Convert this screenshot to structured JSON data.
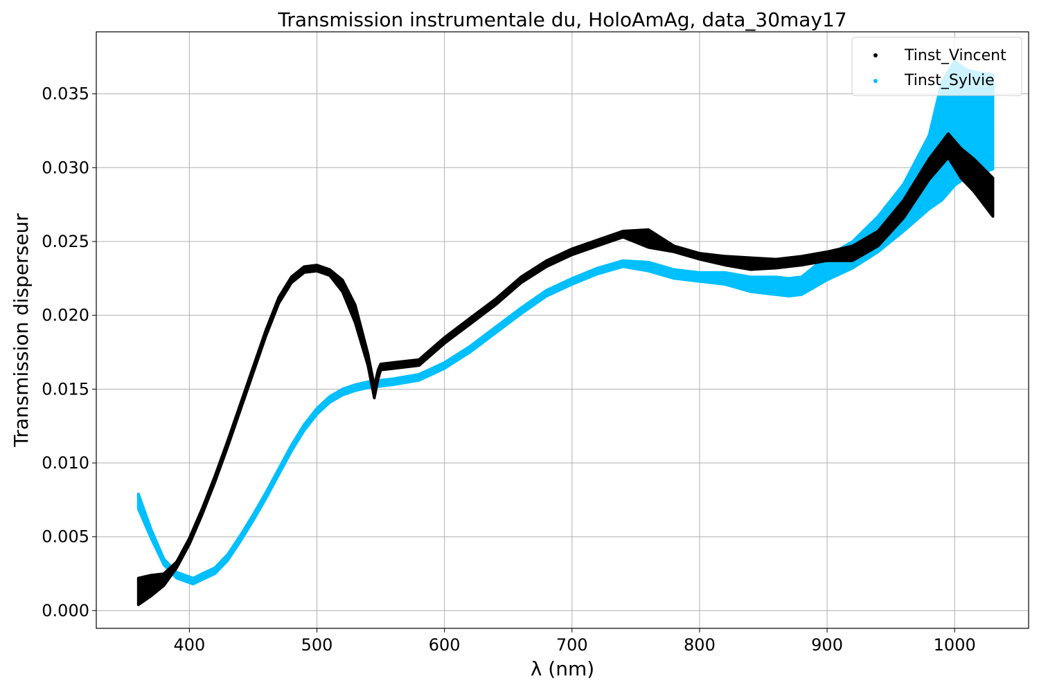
{
  "chart_data": {
    "type": "scatter",
    "title": "Transmission instrumentale du, HoloAmAg, data_30may17",
    "xlabel": "λ (nm)",
    "ylabel": "Transmission disperseur",
    "xlim": [
      327,
      1058
    ],
    "ylim": [
      -0.0012,
      0.0392
    ],
    "xticks": [
      "400",
      "500",
      "600",
      "700",
      "800",
      "900",
      "1000"
    ],
    "yticks": [
      "0.000",
      "0.005",
      "0.010",
      "0.015",
      "0.020",
      "0.025",
      "0.030",
      "0.035"
    ],
    "grid": true,
    "legend_position": "top-right",
    "series": [
      {
        "name": "Tinst_Vincent",
        "color": "#000000",
        "x": [
          360,
          370,
          380,
          390,
          400,
          410,
          420,
          430,
          440,
          450,
          460,
          470,
          480,
          490,
          500,
          510,
          520,
          530,
          540,
          545,
          548,
          550,
          560,
          580,
          600,
          620,
          640,
          660,
          680,
          700,
          720,
          740,
          760,
          780,
          800,
          820,
          840,
          860,
          880,
          900,
          920,
          940,
          960,
          980,
          995,
          1005,
          1015,
          1030
        ],
        "y": [
          0.0013,
          0.0017,
          0.0021,
          0.0031,
          0.0047,
          0.0067,
          0.0089,
          0.0113,
          0.0138,
          0.0163,
          0.0188,
          0.021,
          0.0224,
          0.0231,
          0.0232,
          0.0229,
          0.022,
          0.0201,
          0.017,
          0.0148,
          0.016,
          0.0165,
          0.0166,
          0.0168,
          0.0183,
          0.0196,
          0.0209,
          0.0224,
          0.0235,
          0.0243,
          0.0249,
          0.0255,
          0.0252,
          0.0245,
          0.024,
          0.0237,
          0.0235,
          0.0235,
          0.0237,
          0.024,
          0.0242,
          0.0252,
          0.0272,
          0.0299,
          0.0315,
          0.0303,
          0.0295,
          0.028
        ],
        "band": [
          0.0009,
          0.0007,
          0.0004,
          0.0002,
          0.0002,
          0.0002,
          0.0002,
          0.0002,
          0.0002,
          0.0002,
          0.0002,
          0.0002,
          0.0002,
          0.0002,
          0.0002,
          0.0002,
          0.0004,
          0.0006,
          0.0004,
          0.0004,
          0.0003,
          0.0002,
          0.0002,
          0.0002,
          0.0002,
          0.0002,
          0.0002,
          0.0002,
          0.0002,
          0.0002,
          0.0002,
          0.0002,
          0.0006,
          0.0002,
          0.0002,
          0.0003,
          0.0004,
          0.0003,
          0.0003,
          0.0003,
          0.0005,
          0.0005,
          0.0006,
          0.0007,
          0.0008,
          0.001,
          0.0011,
          0.0013
        ]
      },
      {
        "name": "Tinst_Sylvie",
        "color": "#00bfff",
        "x": [
          360,
          370,
          380,
          390,
          403,
          410,
          420,
          430,
          440,
          450,
          460,
          470,
          480,
          490,
          500,
          510,
          520,
          530,
          540,
          550,
          560,
          580,
          600,
          620,
          640,
          660,
          680,
          700,
          720,
          740,
          760,
          780,
          800,
          820,
          840,
          860,
          870,
          880,
          900,
          920,
          940,
          960,
          980,
          990,
          1000,
          1010,
          1020,
          1030
        ],
        "y": [
          0.0074,
          0.0052,
          0.0033,
          0.0024,
          0.002,
          0.0023,
          0.0027,
          0.0036,
          0.0049,
          0.0063,
          0.0078,
          0.0094,
          0.011,
          0.0124,
          0.0135,
          0.0143,
          0.0148,
          0.0151,
          0.0153,
          0.0154,
          0.0155,
          0.0158,
          0.0166,
          0.0177,
          0.019,
          0.0203,
          0.0215,
          0.0223,
          0.023,
          0.0235,
          0.0233,
          0.0228,
          0.0226,
          0.0225,
          0.0221,
          0.022,
          0.0219,
          0.022,
          0.0232,
          0.0241,
          0.0255,
          0.0273,
          0.0297,
          0.0318,
          0.033,
          0.033,
          0.033,
          0.0331
        ],
        "band": [
          0.0005,
          0.0003,
          0.0002,
          0.0002,
          0.0002,
          0.0002,
          0.0002,
          0.0002,
          0.0002,
          0.0002,
          0.0002,
          0.0002,
          0.0002,
          0.0002,
          0.0002,
          0.0002,
          0.0002,
          0.0002,
          0.0002,
          0.0002,
          0.0002,
          0.0002,
          0.0002,
          0.0002,
          0.0002,
          0.0002,
          0.0002,
          0.0002,
          0.0002,
          0.0002,
          0.0003,
          0.0003,
          0.0003,
          0.0004,
          0.0005,
          0.0006,
          0.0006,
          0.0006,
          0.0008,
          0.0009,
          0.0012,
          0.0016,
          0.0025,
          0.004,
          0.0042,
          0.0036,
          0.0034,
          0.0032
        ]
      }
    ]
  }
}
